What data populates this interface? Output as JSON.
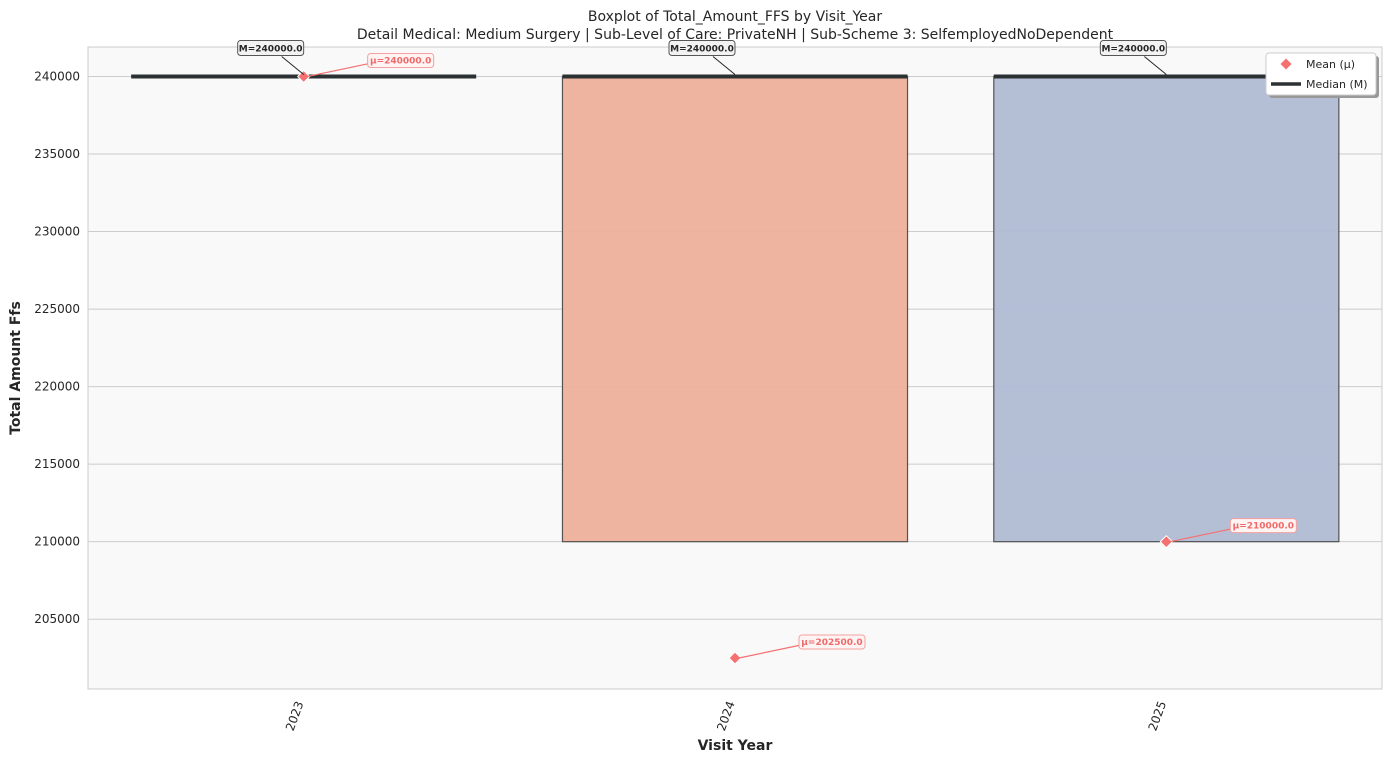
{
  "chart_data": {
    "type": "box",
    "title": "Boxplot of Total_Amount_FFS by Visit_Year",
    "subtitle": "Detail Medical: Medium Surgery | Sub-Level of Care: PrivateNH | Sub-Scheme 3: SelfemployedNoDependent",
    "xlabel": "Visit Year",
    "ylabel": "Total Amount Ffs",
    "categories": [
      "2023",
      "2024",
      "2025"
    ],
    "ylim": [
      200500,
      241900
    ],
    "yticks": [
      205000,
      210000,
      215000,
      220000,
      225000,
      230000,
      235000,
      240000
    ],
    "grid": true,
    "boxes": [
      {
        "category": "2023",
        "q1": 240000,
        "median": 240000,
        "q3": 240000,
        "mean": 240000,
        "color": "#8fb3a8",
        "median_label": "M=240000.0",
        "mean_label": "μ=240000.0"
      },
      {
        "category": "2024",
        "q1": 210000,
        "median": 240000,
        "q3": 240000,
        "mean": 202500,
        "color": "#efb19c",
        "median_label": "M=240000.0",
        "mean_label": "μ=202500.0"
      },
      {
        "category": "2025",
        "q1": 210000,
        "median": 240000,
        "q3": 240000,
        "mean": 210000,
        "color": "#b1bcd5",
        "median_label": "M=240000.0",
        "mean_label": "μ=210000.0"
      }
    ],
    "legend": {
      "position": "top-right",
      "entries": [
        {
          "label": "Mean (μ)",
          "marker": "diamond",
          "color": "#f57070"
        },
        {
          "label": "Median (M)",
          "marker": "line",
          "color": "#2b3133"
        }
      ]
    },
    "colors": {
      "mean": "#f57070",
      "median": "#2b3133",
      "plot_bg": "#f9f9f9",
      "grid": "#cccccc"
    }
  }
}
